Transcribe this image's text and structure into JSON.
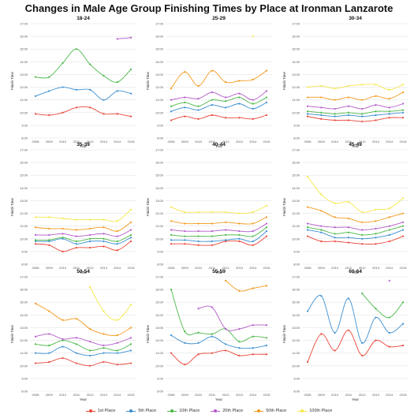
{
  "title": "Changes in Male Age Group Finishing Times by Place at Ironman Lanzarote",
  "legend": [
    {
      "label": "1st Place",
      "color": "#e8473a"
    },
    {
      "label": "5th Place",
      "color": "#3b8fd1"
    },
    {
      "label": "10th Place",
      "color": "#4cb848"
    },
    {
      "label": "20th Place",
      "color": "#b45ac8"
    },
    {
      "label": "50th Place",
      "color": "#f39a1e"
    },
    {
      "label": "100th Place",
      "color": "#f5e84a"
    }
  ],
  "chart_data": [
    {
      "type": "line",
      "title": "18-24",
      "xlabel": "Year",
      "ylabel": "Finish Time",
      "x": [
        2008,
        2009,
        2010,
        2011,
        2012,
        2013,
        2014,
        2015
      ],
      "ylim": [
        8,
        17
      ],
      "yticks": [
        "8:00",
        "9:00",
        "10:00",
        "11:00",
        "12:00",
        "13:00",
        "14:00",
        "15:00",
        "16:00",
        "17:00"
      ],
      "series": [
        {
          "name": "1st Place",
          "values": [
            9.9,
            9.8,
            10.0,
            10.4,
            10.4,
            9.9,
            9.9,
            9.7
          ]
        },
        {
          "name": "5th Place",
          "values": [
            11.3,
            11.7,
            12.0,
            11.8,
            11.8,
            11.0,
            11.7,
            11.5
          ]
        },
        {
          "name": "10th Place",
          "values": [
            12.8,
            12.8,
            13.9,
            15.0,
            13.8,
            12.9,
            12.4,
            13.4
          ]
        },
        {
          "name": "20th Place",
          "values": [
            null,
            null,
            null,
            null,
            null,
            null,
            15.8,
            15.9
          ]
        },
        {
          "name": "50th Place",
          "values": [
            null,
            null,
            null,
            null,
            null,
            null,
            null,
            null
          ]
        },
        {
          "name": "100th Place",
          "values": [
            null,
            null,
            null,
            null,
            null,
            null,
            null,
            null
          ]
        }
      ]
    },
    {
      "type": "line",
      "title": "25-29",
      "xlabel": "Year",
      "ylabel": "Finish Time",
      "x": [
        2008,
        2009,
        2010,
        2011,
        2012,
        2013,
        2014,
        2015
      ],
      "ylim": [
        8,
        17
      ],
      "yticks": [
        "8:00",
        "9:00",
        "10:00",
        "11:00",
        "12:00",
        "13:00",
        "14:00",
        "15:00",
        "16:00",
        "17:00"
      ],
      "series": [
        {
          "name": "1st Place",
          "values": [
            9.4,
            9.7,
            9.5,
            9.8,
            9.6,
            9.6,
            9.5,
            9.8
          ]
        },
        {
          "name": "5th Place",
          "values": [
            10.1,
            10.4,
            10.2,
            10.6,
            10.4,
            10.7,
            10.3,
            10.8
          ]
        },
        {
          "name": "10th Place",
          "values": [
            10.5,
            10.8,
            10.5,
            11.0,
            10.9,
            11.2,
            10.7,
            11.2
          ]
        },
        {
          "name": "20th Place",
          "values": [
            11.0,
            11.2,
            11.1,
            11.6,
            11.2,
            11.5,
            11.0,
            11.7
          ]
        },
        {
          "name": "50th Place",
          "values": [
            11.9,
            13.2,
            12.1,
            13.3,
            12.4,
            12.5,
            12.6,
            13.3
          ]
        },
        {
          "name": "100th Place",
          "values": [
            null,
            null,
            null,
            null,
            null,
            null,
            16.0,
            null
          ]
        }
      ]
    },
    {
      "type": "line",
      "title": "30-34",
      "xlabel": "Year",
      "ylabel": "Finish Time",
      "x": [
        2008,
        2009,
        2010,
        2011,
        2012,
        2013,
        2014,
        2015
      ],
      "ylim": [
        8,
        17
      ],
      "yticks": [
        "8:00",
        "9:00",
        "10:00",
        "11:00",
        "12:00",
        "13:00",
        "14:00",
        "15:00",
        "16:00",
        "17:00"
      ],
      "series": [
        {
          "name": "1st Place",
          "values": [
            9.7,
            9.5,
            9.4,
            9.4,
            9.3,
            9.4,
            9.6,
            9.6
          ]
        },
        {
          "name": "5th Place",
          "values": [
            9.9,
            9.8,
            9.7,
            9.8,
            9.7,
            9.8,
            9.9,
            10.0
          ]
        },
        {
          "name": "10th Place",
          "values": [
            10.1,
            10.0,
            9.9,
            10.0,
            9.9,
            10.1,
            10.1,
            10.2
          ]
        },
        {
          "name": "20th Place",
          "values": [
            10.5,
            10.4,
            10.3,
            10.5,
            10.3,
            10.6,
            10.4,
            10.7
          ]
        },
        {
          "name": "50th Place",
          "values": [
            11.2,
            11.2,
            11.0,
            11.2,
            11.0,
            11.3,
            11.1,
            11.6
          ]
        },
        {
          "name": "100th Place",
          "values": [
            12.0,
            12.1,
            11.9,
            12.1,
            12.2,
            12.2,
            11.8,
            12.2
          ]
        }
      ]
    },
    {
      "type": "line",
      "title": "35-39",
      "xlabel": "Year",
      "ylabel": "Finish Time",
      "x": [
        2008,
        2009,
        2010,
        2011,
        2012,
        2013,
        2014,
        2015
      ],
      "ylim": [
        8,
        17
      ],
      "yticks": [
        "8:00",
        "9:00",
        "10:00",
        "11:00",
        "12:00",
        "13:00",
        "14:00",
        "15:00",
        "16:00",
        "17:00"
      ],
      "series": [
        {
          "name": "1st Place",
          "values": [
            9.6,
            9.5,
            9.0,
            9.3,
            9.3,
            9.4,
            9.1,
            9.8
          ]
        },
        {
          "name": "5th Place",
          "values": [
            9.8,
            9.8,
            10.0,
            9.6,
            9.8,
            9.8,
            9.6,
            10.1
          ]
        },
        {
          "name": "10th Place",
          "values": [
            9.9,
            9.9,
            10.1,
            9.8,
            10.0,
            10.0,
            9.8,
            10.3
          ]
        },
        {
          "name": "20th Place",
          "values": [
            10.3,
            10.3,
            10.4,
            10.2,
            10.3,
            10.4,
            10.2,
            10.7
          ]
        },
        {
          "name": "50th Place",
          "values": [
            10.9,
            10.8,
            10.8,
            10.7,
            10.8,
            10.9,
            10.6,
            11.3
          ]
        },
        {
          "name": "100th Place",
          "values": [
            11.7,
            11.7,
            11.6,
            11.5,
            11.5,
            11.5,
            11.4,
            12.3
          ]
        }
      ]
    },
    {
      "type": "line",
      "title": "40-44",
      "xlabel": "Year",
      "ylabel": "Finish Time",
      "x": [
        2008,
        2009,
        2010,
        2011,
        2012,
        2013,
        2014,
        2015
      ],
      "ylim": [
        8,
        17
      ],
      "yticks": [
        "8:00",
        "9:00",
        "10:00",
        "11:00",
        "12:00",
        "13:00",
        "14:00",
        "15:00",
        "16:00",
        "17:00"
      ],
      "series": [
        {
          "name": "1st Place",
          "values": [
            9.6,
            9.6,
            9.5,
            9.5,
            9.8,
            9.8,
            9.5,
            10.2
          ]
        },
        {
          "name": "5th Place",
          "values": [
            9.9,
            9.9,
            9.8,
            9.8,
            9.9,
            10.0,
            9.8,
            10.6
          ]
        },
        {
          "name": "10th Place",
          "values": [
            10.3,
            10.2,
            10.2,
            10.2,
            10.3,
            10.3,
            10.2,
            10.9
          ]
        },
        {
          "name": "20th Place",
          "values": [
            10.7,
            10.6,
            10.6,
            10.6,
            10.7,
            10.6,
            10.6,
            11.2
          ]
        },
        {
          "name": "50th Place",
          "values": [
            11.4,
            11.2,
            11.2,
            11.2,
            11.3,
            11.2,
            11.2,
            11.7
          ]
        },
        {
          "name": "100th Place",
          "values": [
            12.5,
            12.1,
            12.1,
            12.1,
            12.1,
            12.0,
            12.1,
            12.6
          ]
        }
      ]
    },
    {
      "type": "line",
      "title": "45-49",
      "xlabel": "Year",
      "ylabel": "Finish Time",
      "x": [
        2008,
        2009,
        2010,
        2011,
        2012,
        2013,
        2014,
        2015
      ],
      "ylim": [
        8,
        17
      ],
      "yticks": [
        "8:00",
        "9:00",
        "10:00",
        "11:00",
        "12:00",
        "13:00",
        "14:00",
        "15:00",
        "16:00",
        "17:00"
      ],
      "series": [
        {
          "name": "1st Place",
          "values": [
            10.2,
            9.8,
            9.8,
            9.7,
            9.6,
            9.6,
            9.8,
            10.2
          ]
        },
        {
          "name": "5th Place",
          "values": [
            10.7,
            10.5,
            10.1,
            10.1,
            10.0,
            10.1,
            10.3,
            10.7
          ]
        },
        {
          "name": "10th Place",
          "values": [
            10.9,
            10.7,
            10.4,
            10.5,
            10.3,
            10.4,
            10.7,
            11.0
          ]
        },
        {
          "name": "20th Place",
          "values": [
            11.2,
            11.0,
            10.9,
            10.9,
            10.7,
            10.8,
            11.0,
            11.3
          ]
        },
        {
          "name": "50th Place",
          "values": [
            12.5,
            12.2,
            11.7,
            11.6,
            11.3,
            11.4,
            11.7,
            12.0
          ]
        },
        {
          "name": "100th Place",
          "values": [
            14.9,
            13.5,
            12.8,
            12.9,
            12.1,
            12.3,
            12.4,
            13.2
          ]
        }
      ]
    },
    {
      "type": "line",
      "title": "50-54",
      "xlabel": "Year",
      "ylabel": "Finish Time",
      "x": [
        2008,
        2009,
        2010,
        2011,
        2012,
        2013,
        2014,
        2015
      ],
      "ylim": [
        8,
        17
      ],
      "yticks": [
        "8:00",
        "9:00",
        "10:00",
        "11:00",
        "12:00",
        "13:00",
        "14:00",
        "15:00",
        "16:00",
        "17:00"
      ],
      "series": [
        {
          "name": "1st Place",
          "values": [
            10.2,
            10.3,
            10.6,
            10.2,
            10.0,
            10.3,
            10.1,
            10.2
          ]
        },
        {
          "name": "5th Place",
          "values": [
            11.0,
            11.0,
            11.5,
            11.0,
            10.8,
            11.0,
            11.0,
            11.2
          ]
        },
        {
          "name": "10th Place",
          "values": [
            11.7,
            11.6,
            12.0,
            11.7,
            11.2,
            11.4,
            11.2,
            11.7
          ]
        },
        {
          "name": "20th Place",
          "values": [
            12.3,
            12.5,
            12.1,
            12.2,
            11.9,
            11.6,
            11.8,
            12.2
          ]
        },
        {
          "name": "50th Place",
          "values": [
            14.9,
            14.3,
            13.6,
            13.7,
            12.9,
            12.5,
            12.4,
            13.0
          ]
        },
        {
          "name": "100th Place",
          "values": [
            null,
            null,
            null,
            null,
            16.2,
            14.3,
            13.6,
            14.8
          ]
        }
      ]
    },
    {
      "type": "line",
      "title": "55-59",
      "xlabel": "Year",
      "ylabel": "Finish Time",
      "x": [
        2008,
        2009,
        2010,
        2011,
        2012,
        2013,
        2014,
        2015
      ],
      "ylim": [
        8,
        17
      ],
      "yticks": [
        "8:00",
        "9:00",
        "10:00",
        "11:00",
        "12:00",
        "13:00",
        "14:00",
        "15:00",
        "16:00",
        "17:00"
      ],
      "series": [
        {
          "name": "1st Place",
          "values": [
            11.0,
            10.1,
            10.9,
            11.0,
            11.2,
            10.8,
            10.9,
            10.9
          ]
        },
        {
          "name": "5th Place",
          "values": [
            12.4,
            11.8,
            11.8,
            12.3,
            11.7,
            11.4,
            11.4,
            11.6
          ]
        },
        {
          "name": "10th Place",
          "values": [
            16.0,
            12.7,
            12.6,
            12.5,
            12.9,
            11.9,
            12.3,
            12.2
          ]
        },
        {
          "name": "20th Place",
          "values": [
            null,
            null,
            14.5,
            14.6,
            12.9,
            12.9,
            13.2,
            13.2
          ]
        },
        {
          "name": "50th Place",
          "values": [
            null,
            null,
            null,
            null,
            16.7,
            15.9,
            16.1,
            16.3
          ]
        },
        {
          "name": "100th Place",
          "values": [
            null,
            null,
            null,
            null,
            null,
            null,
            null,
            null
          ]
        }
      ]
    },
    {
      "type": "line",
      "title": "60-64",
      "xlabel": "Year",
      "ylabel": "Finish Time",
      "x": [
        2008,
        2009,
        2010,
        2011,
        2012,
        2013,
        2014,
        2015
      ],
      "ylim": [
        8,
        17
      ],
      "yticks": [
        "8:00",
        "9:00",
        "10:00",
        "11:00",
        "12:00",
        "13:00",
        "14:00",
        "15:00",
        "16:00",
        "17:00"
      ],
      "series": [
        {
          "name": "1st Place",
          "values": [
            10.3,
            12.5,
            11.2,
            12.8,
            10.8,
            12.0,
            11.5,
            11.6
          ]
        },
        {
          "name": "5th Place",
          "values": [
            14.3,
            15.5,
            12.6,
            15.3,
            11.8,
            13.8,
            12.6,
            13.3
          ]
        },
        {
          "name": "10th Place",
          "values": [
            null,
            null,
            null,
            null,
            15.7,
            14.5,
            13.8,
            15.0
          ]
        },
        {
          "name": "20th Place",
          "values": [
            null,
            null,
            null,
            null,
            null,
            null,
            16.7,
            null
          ]
        },
        {
          "name": "50th Place",
          "values": [
            null,
            null,
            null,
            null,
            null,
            null,
            null,
            null
          ]
        },
        {
          "name": "100th Place",
          "values": [
            null,
            null,
            null,
            null,
            null,
            null,
            null,
            null
          ]
        }
      ]
    }
  ]
}
